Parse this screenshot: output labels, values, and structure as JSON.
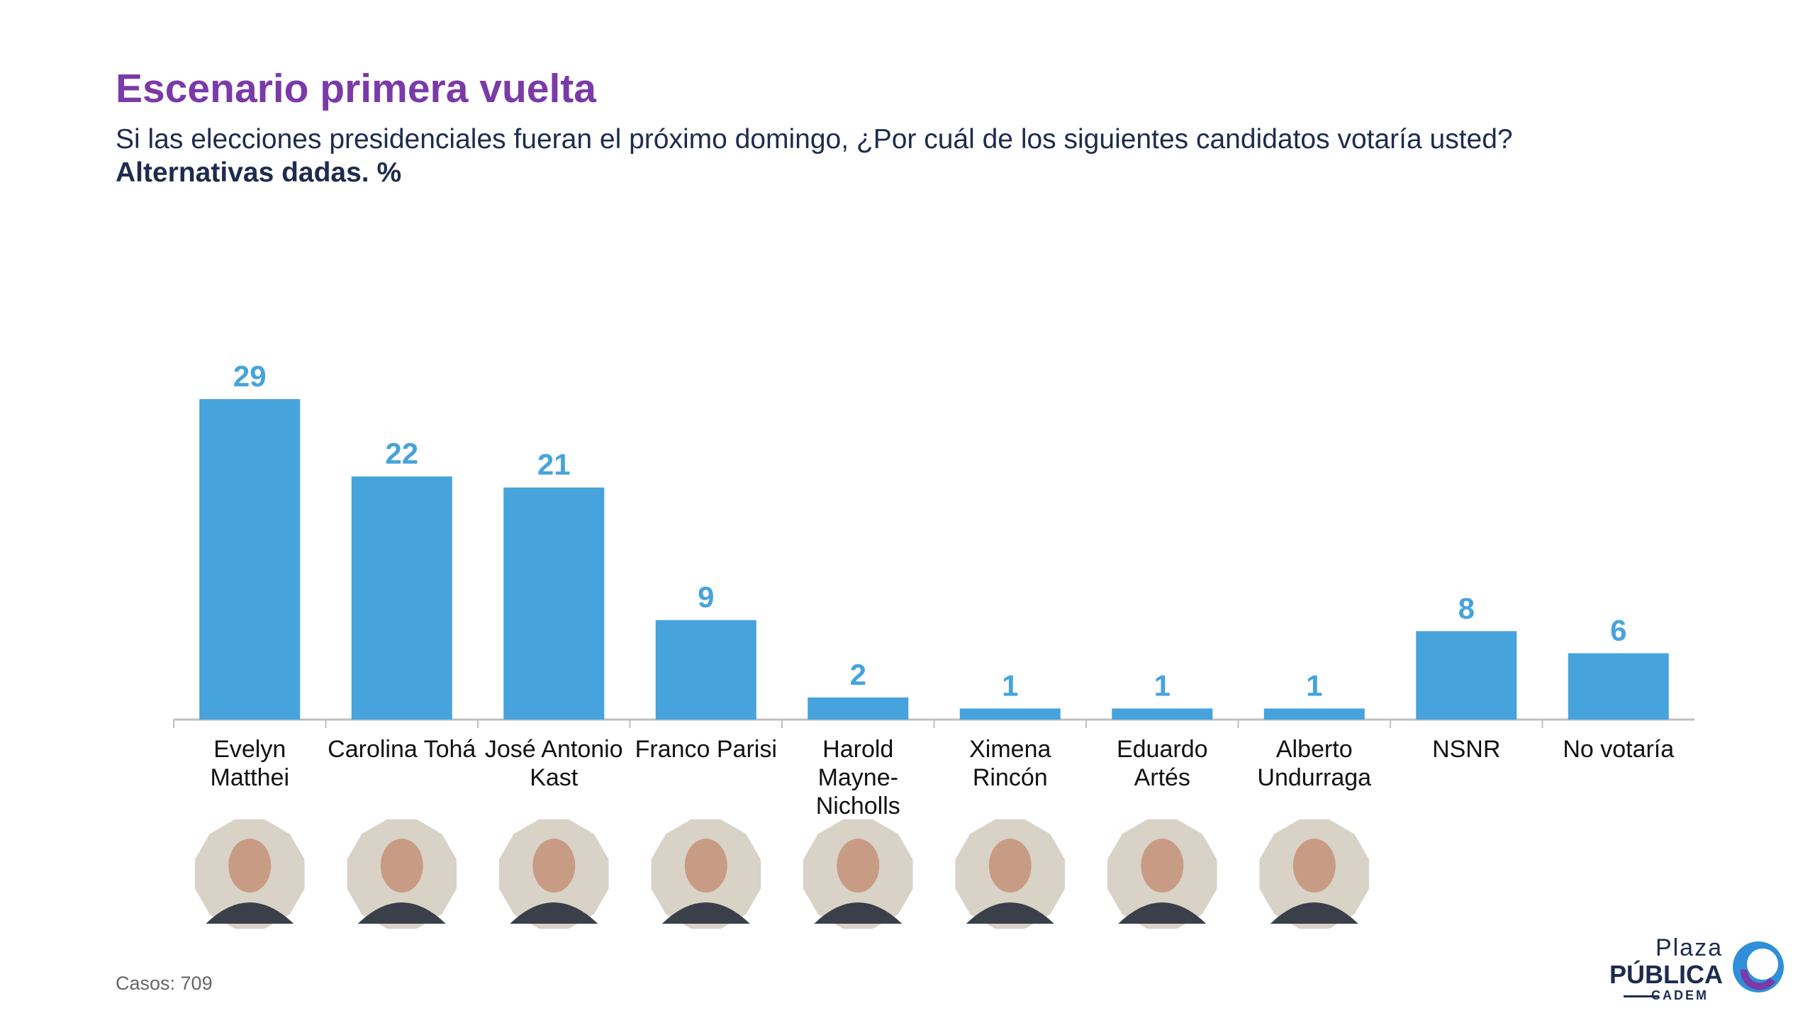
{
  "header": {
    "title": "Escenario primera vuelta",
    "subtitle": "Si las elecciones presidenciales fueran el próximo domingo, ¿Por cuál de los siguientes candidatos votaría usted?",
    "subtitle_bold": "Alternativas dadas. %"
  },
  "footer": {
    "cases": "Casos: 709"
  },
  "logo": {
    "line1": "Plaza",
    "line2": "PÚBLICA",
    "line3": "CADEM"
  },
  "colors": {
    "bar": "#46a3dc",
    "title": "#7a3aa8",
    "text": "#1e2b4f"
  },
  "chart_data": {
    "type": "bar",
    "categories": [
      [
        "Evelyn",
        "Matthei"
      ],
      [
        "Carolina Tohá"
      ],
      [
        "José Antonio",
        "Kast"
      ],
      [
        "Franco Parisi"
      ],
      [
        "Harold",
        "Mayne-",
        "Nicholls"
      ],
      [
        "Ximena",
        "Rincón"
      ],
      [
        "Eduardo",
        "Artés"
      ],
      [
        "Alberto",
        "Undurraga"
      ],
      [
        "NSNR"
      ],
      [
        "No votaría"
      ]
    ],
    "values": [
      29,
      22,
      21,
      9,
      2,
      1,
      1,
      1,
      8,
      6
    ],
    "has_photo": [
      true,
      true,
      true,
      true,
      true,
      true,
      true,
      true,
      false,
      false
    ],
    "title": "",
    "xlabel": "",
    "ylabel": "",
    "ylim": [
      0,
      30
    ],
    "grid": false,
    "data_labels": true
  }
}
